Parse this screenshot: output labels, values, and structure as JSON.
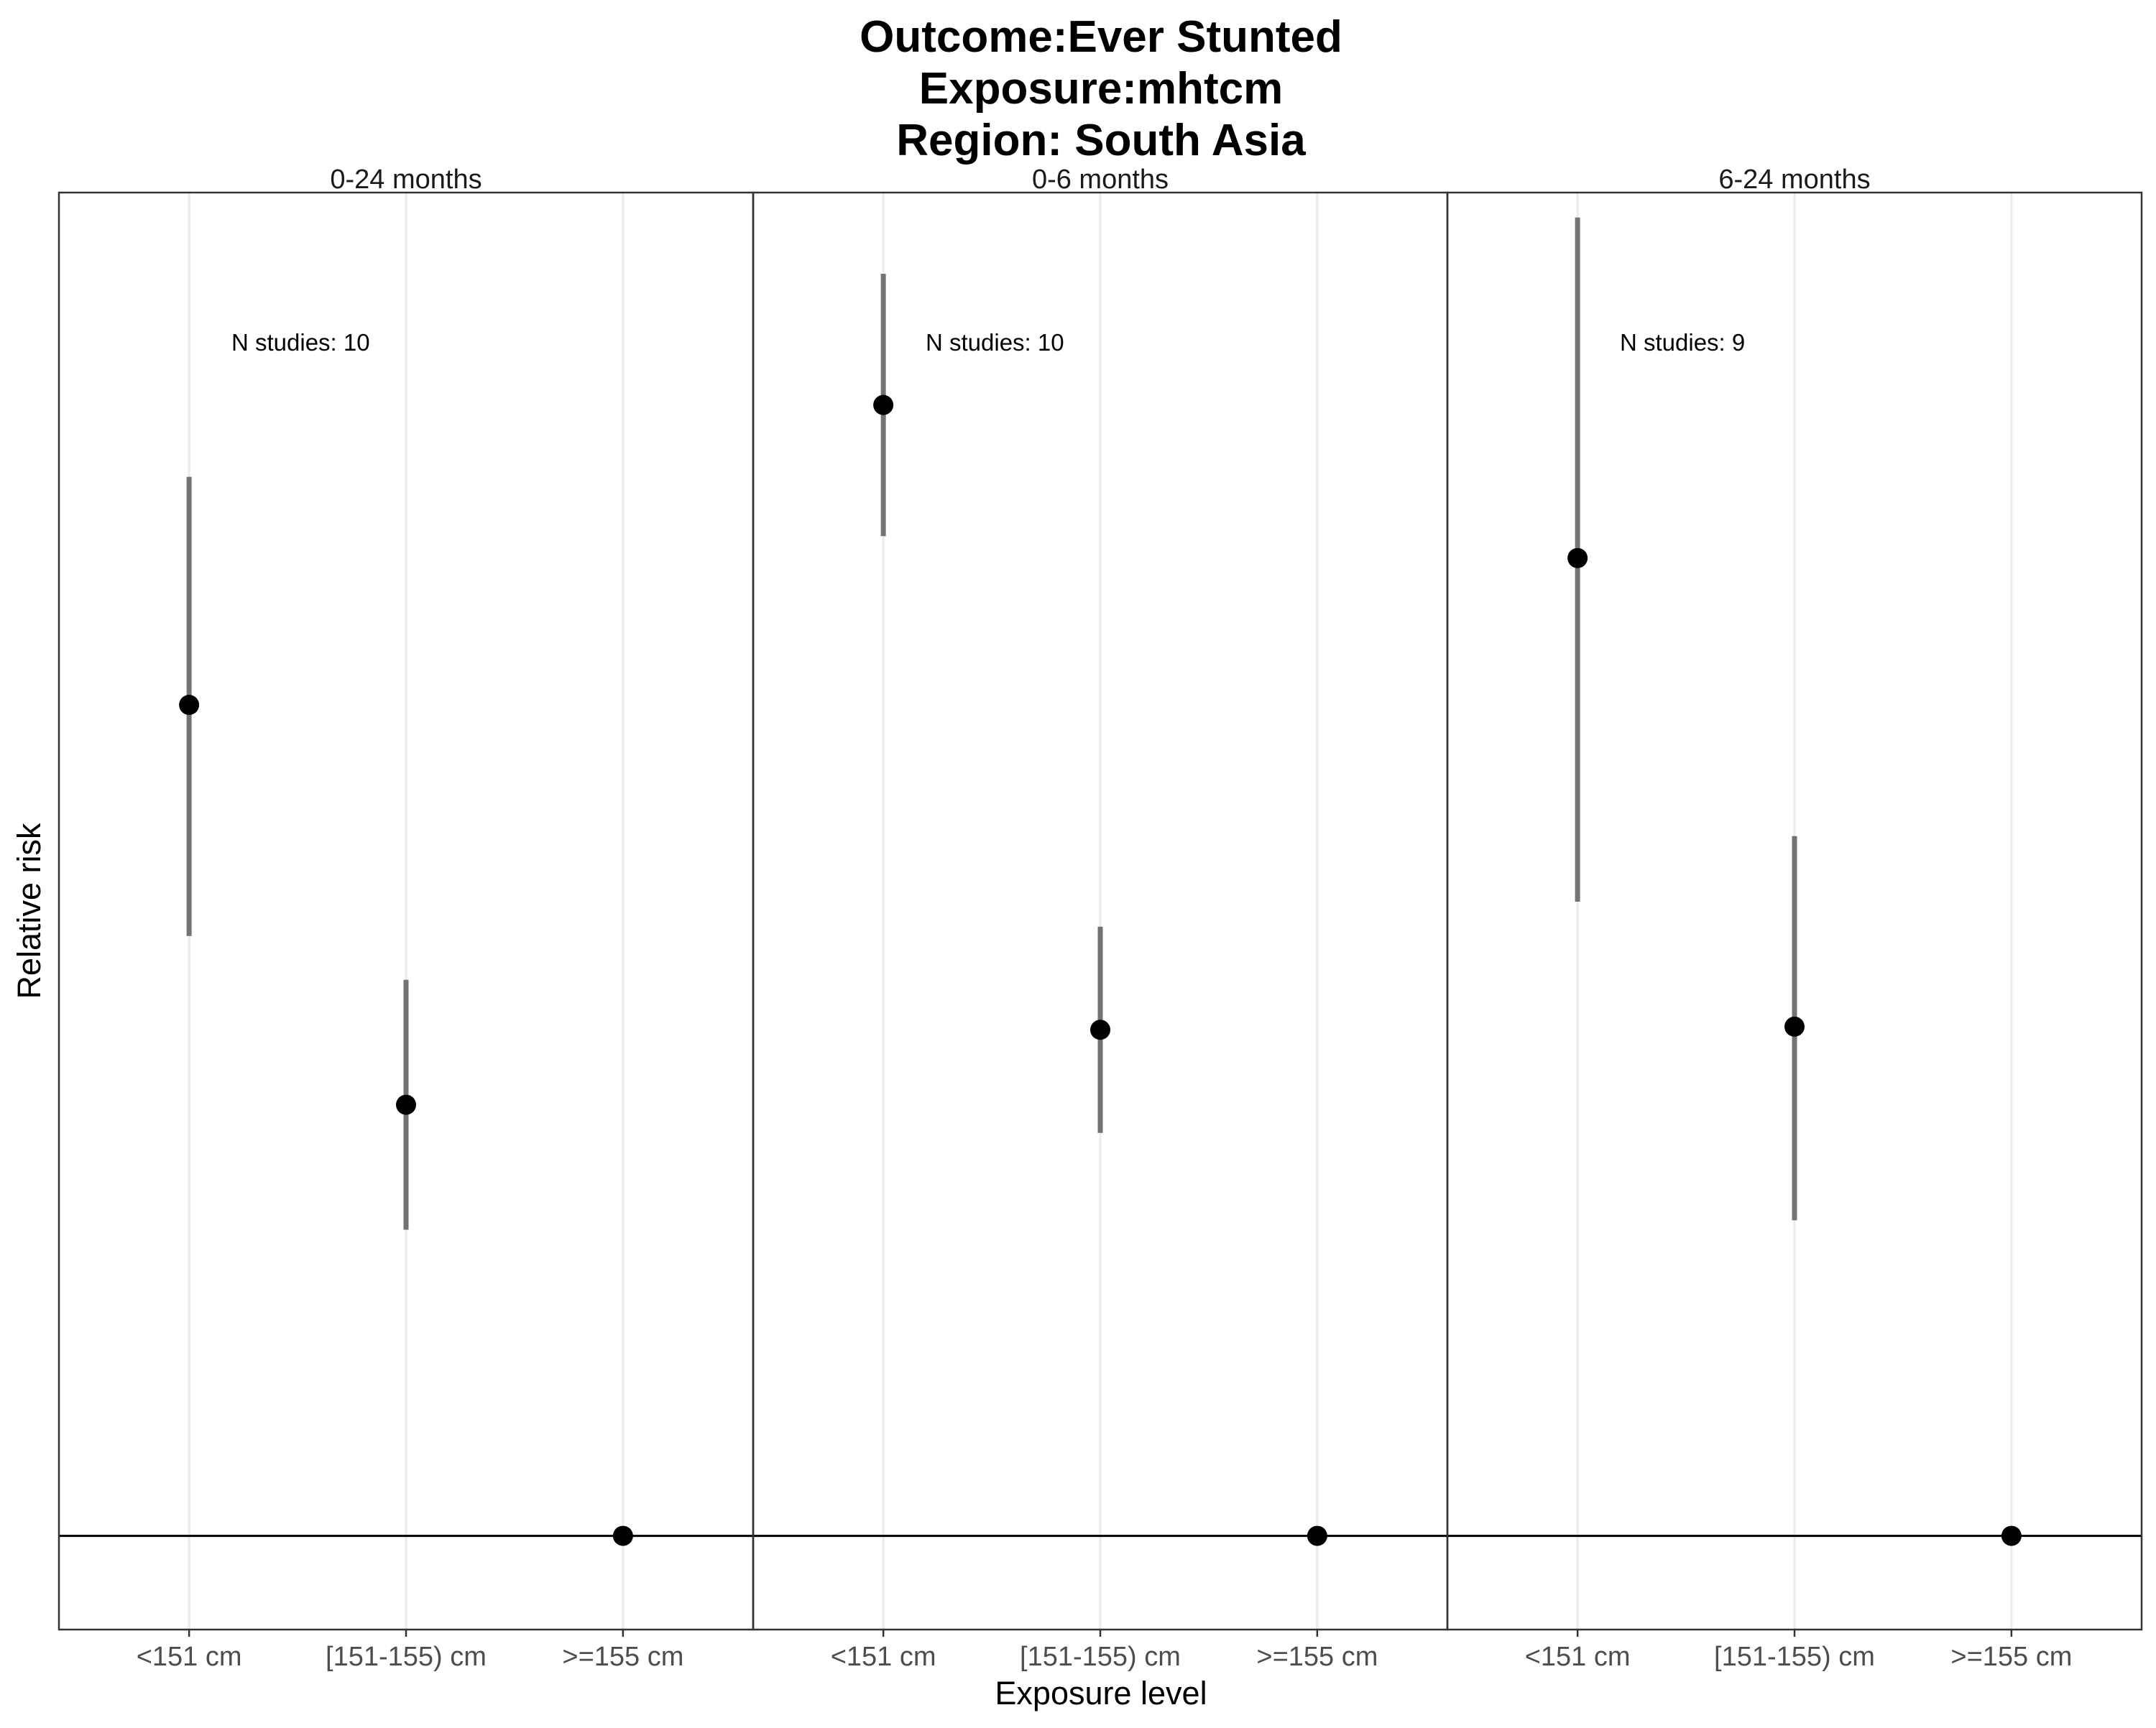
{
  "chart_data": {
    "type": "scatter",
    "title_lines": [
      "Outcome:Ever Stunted",
      "Exposure:mhtcm",
      "Region: South Asia"
    ],
    "xlabel": "Exposure level",
    "ylabel": "Relative risk",
    "categories": [
      "<151 cm",
      "[151-155) cm",
      ">=155 cm"
    ],
    "ylim": [
      0.97,
      1.43
    ],
    "reference_line": 1.0,
    "grid": "vertical",
    "colors": {
      "point": "#000000",
      "errorbar": "#737373",
      "grid": "#ebebeb",
      "border": "#333333",
      "reference": "#000000"
    },
    "panels": [
      {
        "label": "0-24 months",
        "annotation": "N studies: 10",
        "values": [
          1.266,
          1.138,
          1.0
        ],
        "lower": [
          1.192,
          1.098,
          1.0
        ],
        "upper": [
          1.339,
          1.178,
          1.0
        ]
      },
      {
        "label": "0-6 months",
        "annotation": "N studies: 10",
        "values": [
          1.362,
          1.162,
          1.0
        ],
        "lower": [
          1.32,
          1.129,
          1.0
        ],
        "upper": [
          1.404,
          1.195,
          1.0
        ]
      },
      {
        "label": "6-24 months",
        "annotation": "N studies: 9",
        "values": [
          1.313,
          1.163,
          1.0
        ],
        "lower": [
          1.203,
          1.101,
          1.0
        ],
        "upper": [
          1.422,
          1.224,
          1.0
        ]
      }
    ]
  }
}
